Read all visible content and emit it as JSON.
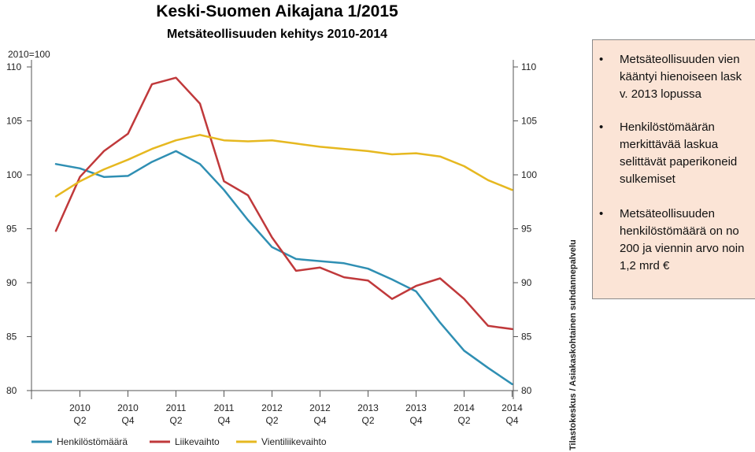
{
  "chart_data": {
    "type": "line",
    "title": "Keski-Suomen Aikajana 1/2015",
    "subtitle": "Metsäteollisuuden kehitys 2010-2014",
    "ylabel": "2010=100",
    "ylim": [
      80,
      110
    ],
    "yticks": [
      "80",
      "85",
      "90",
      "95",
      "100",
      "105",
      "110"
    ],
    "categories": [
      "2010 Q1",
      "2010 Q2",
      "2010 Q3",
      "2010 Q4",
      "2011 Q1",
      "2011 Q2",
      "2011 Q3",
      "2011 Q4",
      "2012 Q1",
      "2012 Q2",
      "2012 Q3",
      "2012 Q4",
      "2013 Q1",
      "2013 Q2",
      "2013 Q3",
      "2013 Q4",
      "2014 Q1",
      "2014 Q2",
      "2014 Q3",
      "2014 Q4"
    ],
    "xtick_labels": [
      {
        "index": 1,
        "year": "2010",
        "q": "Q2"
      },
      {
        "index": 3,
        "year": "2010",
        "q": "Q4"
      },
      {
        "index": 5,
        "year": "2011",
        "q": "Q2"
      },
      {
        "index": 7,
        "year": "2011",
        "q": "Q4"
      },
      {
        "index": 9,
        "year": "2012",
        "q": "Q2"
      },
      {
        "index": 11,
        "year": "2012",
        "q": "Q4"
      },
      {
        "index": 13,
        "year": "2013",
        "q": "Q2"
      },
      {
        "index": 15,
        "year": "2013",
        "q": "Q4"
      },
      {
        "index": 17,
        "year": "2014",
        "q": "Q2"
      },
      {
        "index": 19,
        "year": "2014",
        "q": "Q4"
      }
    ],
    "series": [
      {
        "name": "Henkilöstömäärä",
        "color": "#2f8fb3",
        "values": [
          101.0,
          100.6,
          99.8,
          99.9,
          101.2,
          102.2,
          101.0,
          98.6,
          95.8,
          93.3,
          92.2,
          92.0,
          91.8,
          91.3,
          90.3,
          89.2,
          86.3,
          83.7,
          82.1,
          80.6
        ]
      },
      {
        "name": "Liikevaihto",
        "color": "#c0393b",
        "values": [
          94.8,
          99.8,
          102.2,
          103.8,
          108.4,
          109.0,
          106.6,
          99.4,
          98.1,
          94.2,
          91.1,
          91.4,
          90.5,
          90.2,
          88.5,
          89.7,
          90.4,
          88.5,
          86.0,
          85.7
        ]
      },
      {
        "name": "Vientiliikevaihto",
        "color": "#e6b820",
        "values": [
          98.0,
          99.4,
          100.5,
          101.4,
          102.4,
          103.2,
          103.7,
          103.2,
          103.1,
          103.2,
          102.9,
          102.6,
          102.4,
          102.2,
          101.9,
          102.0,
          101.7,
          100.8,
          99.5,
          98.6
        ]
      }
    ],
    "legend_position": "bottom",
    "grid": false
  },
  "source": "Tilastokeskus / Asiakaskohtainen suhdannepalvelu",
  "notes": [
    {
      "text": "Metsäteollisuuden vien\nkääntyi hienoiseen lask\nv. 2013 lopussa"
    },
    {
      "text": "Henkilöstömäärän\nmerkittävää laskua\nselittävät paperikoneid\nsulkemiset"
    },
    {
      "text": "Metsäteollisuuden\nhenkilöstömäärä on no\n200 ja viennin arvo noin\n1,2 mrd €"
    }
  ]
}
